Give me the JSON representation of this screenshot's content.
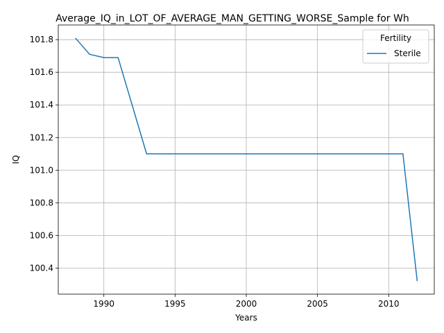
{
  "chart_data": {
    "type": "line",
    "title": "Average_IQ_in_LOT_OF_AVERAGE_MAN_GETTING_WORSE_Sample for Wh",
    "xlabel": "Years",
    "ylabel": "IQ",
    "xlim": [
      1986.8,
      2013.2
    ],
    "ylim": [
      100.24,
      101.89
    ],
    "xticks": [
      1990,
      1995,
      2000,
      2005,
      2010
    ],
    "yticks": [
      100.4,
      100.6,
      100.8,
      101.0,
      101.2,
      101.4,
      101.6,
      101.8
    ],
    "xtick_labels": [
      "1990",
      "1995",
      "2000",
      "2005",
      "2010"
    ],
    "ytick_labels": [
      "100.4",
      "100.6",
      "100.8",
      "101.0",
      "101.2",
      "101.4",
      "101.6",
      "101.8"
    ],
    "grid": true,
    "legend": {
      "title": "Fertility",
      "placement": "top-right"
    },
    "series": [
      {
        "name": "Sterile",
        "color": "#1f77b4",
        "x": [
          1988,
          1989,
          1990,
          1991,
          1993,
          1995,
          2000,
          2005,
          2010,
          2011,
          2012
        ],
        "y": [
          101.81,
          101.71,
          101.69,
          101.69,
          101.1,
          101.1,
          101.1,
          101.1,
          101.1,
          101.1,
          100.32
        ]
      }
    ]
  }
}
